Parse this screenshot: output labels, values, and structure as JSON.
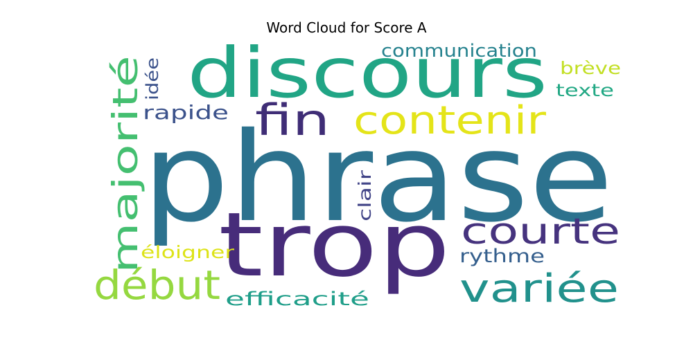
{
  "title": "Word Cloud for Score A",
  "words": [
    {
      "text": "phrase",
      "color": "#2c728e"
    },
    {
      "text": "trop",
      "color": "#472c7a"
    },
    {
      "text": "discours",
      "color": "#21a585"
    },
    {
      "text": "majorité",
      "color": "#44bf70"
    },
    {
      "text": "contenir",
      "color": "#e4e419"
    },
    {
      "text": "fin",
      "color": "#3f2d76"
    },
    {
      "text": "courte",
      "color": "#46337e"
    },
    {
      "text": "variée",
      "color": "#21918c"
    },
    {
      "text": "début",
      "color": "#95d840"
    },
    {
      "text": "communication",
      "color": "#26828e"
    },
    {
      "text": "idée",
      "color": "#3b528b"
    },
    {
      "text": "rapide",
      "color": "#3b528b"
    },
    {
      "text": "brève",
      "color": "#c2df23"
    },
    {
      "text": "texte",
      "color": "#22a884"
    },
    {
      "text": "clair",
      "color": "#414487"
    },
    {
      "text": "éloigner",
      "color": "#dde318"
    },
    {
      "text": "rythme",
      "color": "#355f8d"
    },
    {
      "text": "efficacité",
      "color": "#1f9e89"
    }
  ]
}
